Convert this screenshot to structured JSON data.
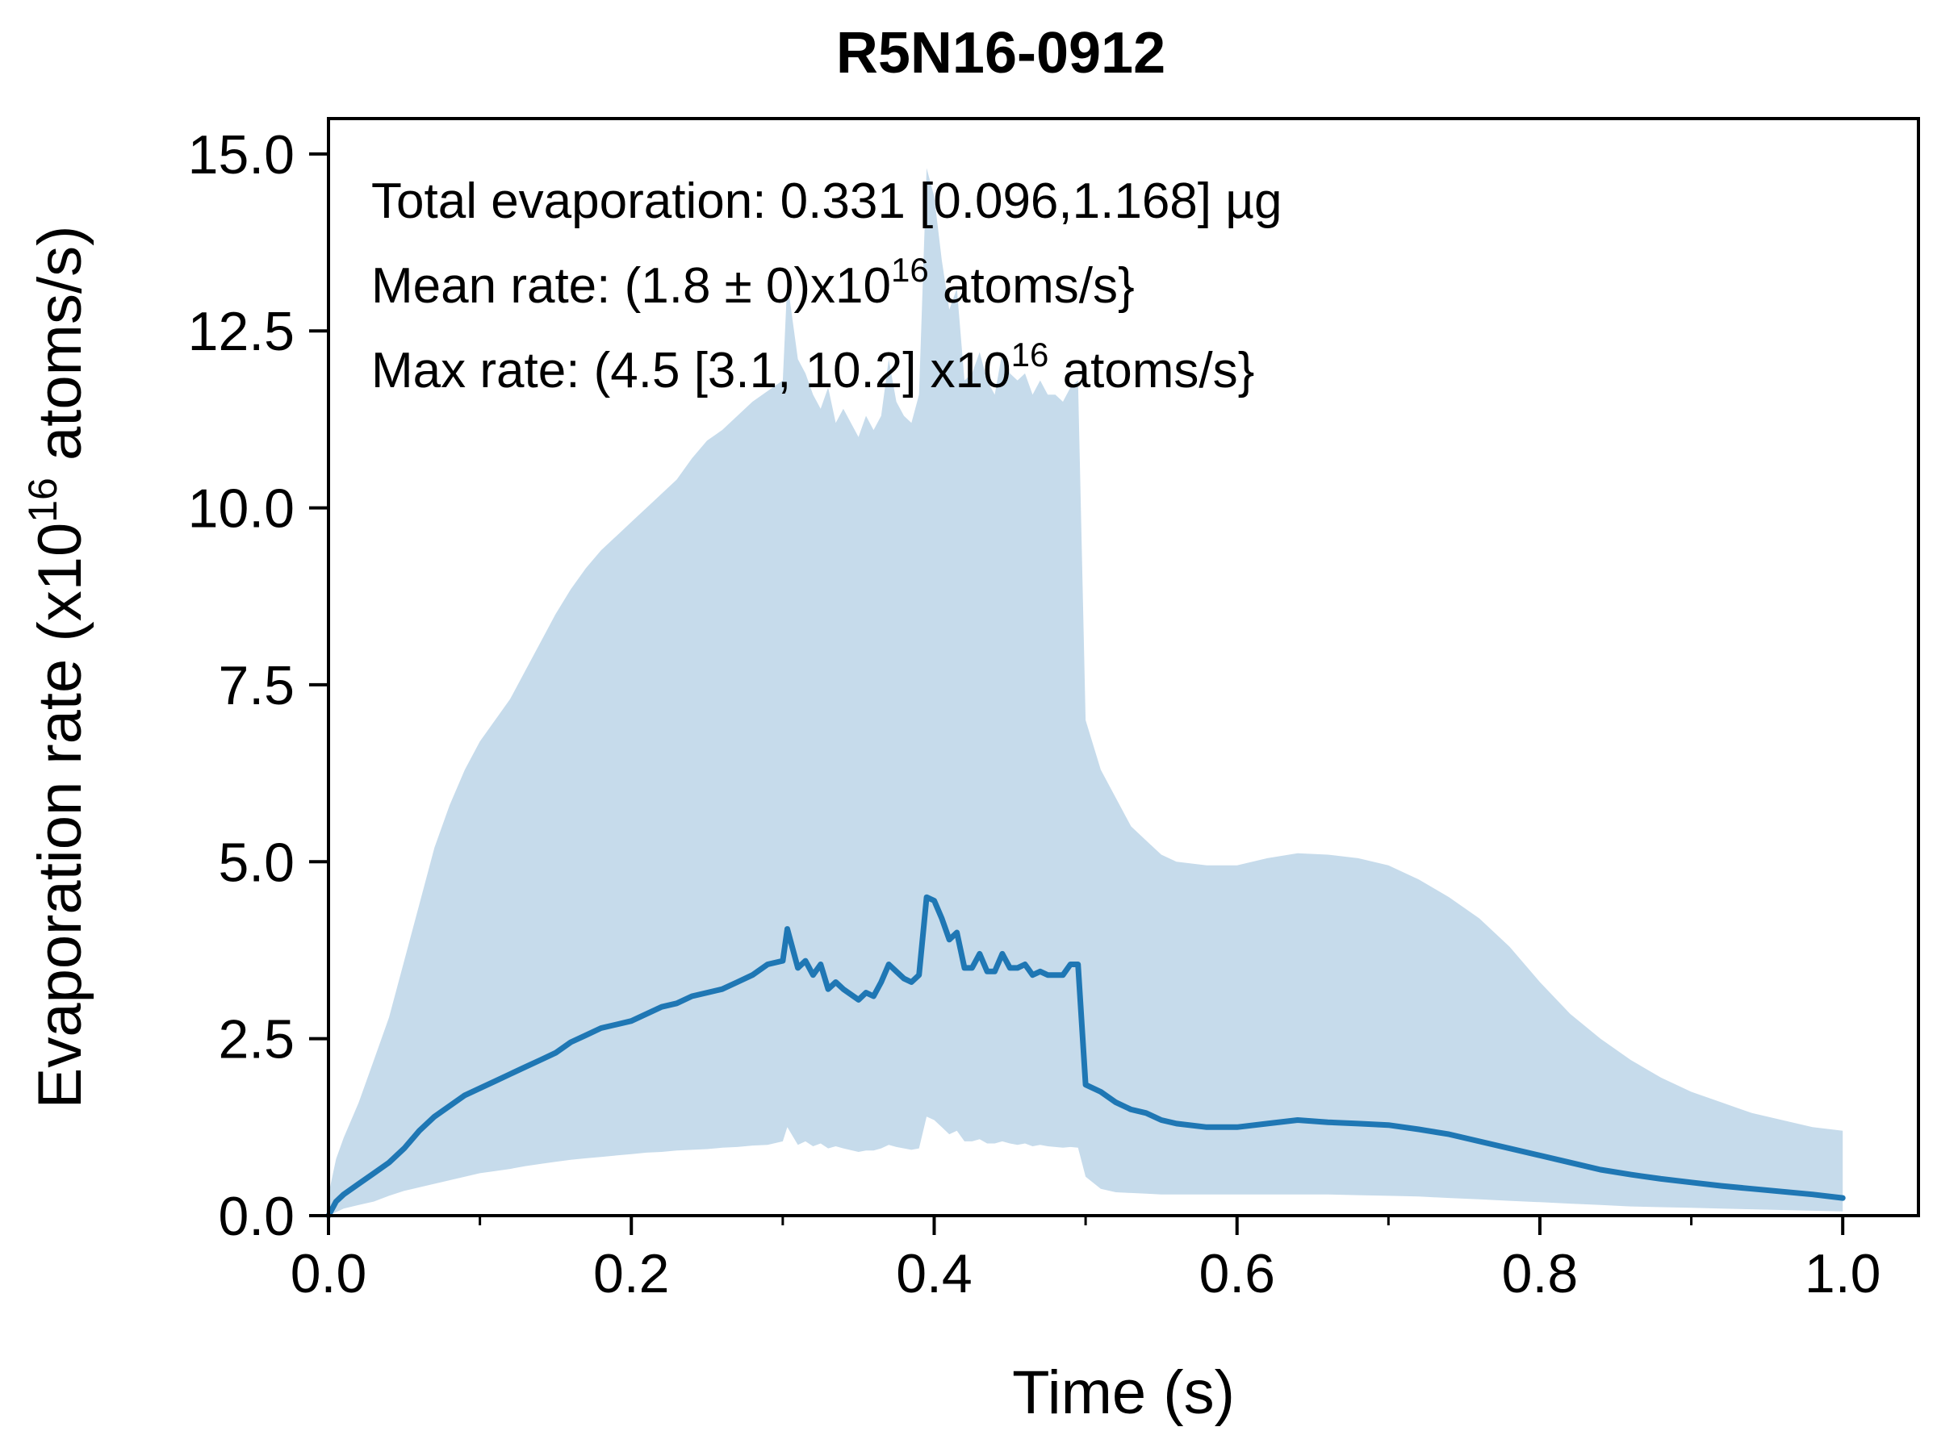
{
  "chart_data": {
    "type": "area",
    "title": "R5N16-0912",
    "xlabel": "Time (s)",
    "ylabel": "Evaporation rate (x10",
    "ylabel_sup": "16",
    "ylabel_end": " atoms/s)",
    "xlim": [
      0.0,
      1.05
    ],
    "ylim": [
      0.0,
      15.5
    ],
    "xticks": [
      0.0,
      0.2,
      0.4,
      0.6,
      0.8,
      1.0
    ],
    "xtick_labels": [
      "0.0",
      "0.2",
      "0.4",
      "0.6",
      "0.8",
      "1.0"
    ],
    "yticks": [
      0.0,
      2.5,
      5.0,
      7.5,
      10.0,
      12.5,
      15.0
    ],
    "ytick_labels": [
      "0.0",
      "2.5",
      "5.0",
      "7.5",
      "10.0",
      "12.5",
      "15.0"
    ],
    "grid": false,
    "annotations": {
      "line1": "Total evaporation: 0.331 [0.096,1.168] µg",
      "line2_pre": "Mean rate: (1.8 ± 0)x10",
      "line2_sup": "16",
      "line2_post": " atoms/s}",
      "line3_pre": "Max rate: (4.5 [3.1, 10.2] x10",
      "line3_sup": "16",
      "line3_post": " atoms/s}"
    },
    "colors": {
      "line": "#1f77b4",
      "band": "#c6dbeb"
    },
    "series": [
      {
        "x": [
          0.0,
          0.005,
          0.01,
          0.02,
          0.03,
          0.04,
          0.05,
          0.06,
          0.07,
          0.08,
          0.09,
          0.1,
          0.11,
          0.12,
          0.13,
          0.14,
          0.15,
          0.16,
          0.17,
          0.18,
          0.19,
          0.2,
          0.21,
          0.22,
          0.23,
          0.24,
          0.25,
          0.26,
          0.27,
          0.28,
          0.29,
          0.3,
          0.303,
          0.31,
          0.315,
          0.32,
          0.325,
          0.33,
          0.335,
          0.34,
          0.35,
          0.355,
          0.36,
          0.365,
          0.37,
          0.375,
          0.38,
          0.385,
          0.39,
          0.395,
          0.4,
          0.405,
          0.41,
          0.415,
          0.42,
          0.425,
          0.43,
          0.435,
          0.44,
          0.445,
          0.45,
          0.455,
          0.46,
          0.465,
          0.47,
          0.475,
          0.48,
          0.485,
          0.49,
          0.495,
          0.5,
          0.51,
          0.52,
          0.53,
          0.54,
          0.55,
          0.56,
          0.58,
          0.6,
          0.62,
          0.64,
          0.66,
          0.68,
          0.7,
          0.72,
          0.74,
          0.76,
          0.78,
          0.8,
          0.82,
          0.84,
          0.86,
          0.88,
          0.9,
          0.92,
          0.94,
          0.96,
          0.98,
          1.0
        ],
        "y": [
          0.0,
          0.2,
          0.3,
          0.45,
          0.6,
          0.75,
          0.95,
          1.2,
          1.4,
          1.55,
          1.7,
          1.8,
          1.9,
          2.0,
          2.1,
          2.2,
          2.3,
          2.45,
          2.55,
          2.65,
          2.7,
          2.75,
          2.85,
          2.95,
          3.0,
          3.1,
          3.15,
          3.2,
          3.3,
          3.4,
          3.55,
          3.6,
          4.05,
          3.5,
          3.6,
          3.4,
          3.55,
          3.2,
          3.3,
          3.2,
          3.05,
          3.15,
          3.1,
          3.3,
          3.55,
          3.45,
          3.35,
          3.3,
          3.4,
          4.5,
          4.45,
          4.2,
          3.9,
          4.0,
          3.5,
          3.5,
          3.7,
          3.45,
          3.45,
          3.7,
          3.5,
          3.5,
          3.55,
          3.4,
          3.45,
          3.4,
          3.4,
          3.4,
          3.55,
          3.55,
          1.85,
          1.75,
          1.6,
          1.5,
          1.45,
          1.35,
          1.3,
          1.25,
          1.25,
          1.3,
          1.35,
          1.32,
          1.3,
          1.28,
          1.22,
          1.15,
          1.05,
          0.95,
          0.85,
          0.75,
          0.65,
          0.58,
          0.52,
          0.47,
          0.42,
          0.38,
          0.34,
          0.3,
          0.25
        ]
      }
    ],
    "band": {
      "x": [
        0.0,
        0.005,
        0.01,
        0.02,
        0.03,
        0.04,
        0.05,
        0.06,
        0.07,
        0.08,
        0.09,
        0.1,
        0.11,
        0.12,
        0.13,
        0.14,
        0.15,
        0.16,
        0.17,
        0.18,
        0.19,
        0.2,
        0.21,
        0.22,
        0.23,
        0.24,
        0.25,
        0.26,
        0.27,
        0.28,
        0.29,
        0.3,
        0.303,
        0.31,
        0.315,
        0.32,
        0.325,
        0.33,
        0.335,
        0.34,
        0.35,
        0.355,
        0.36,
        0.365,
        0.37,
        0.375,
        0.38,
        0.385,
        0.39,
        0.395,
        0.4,
        0.405,
        0.41,
        0.415,
        0.42,
        0.425,
        0.43,
        0.435,
        0.44,
        0.445,
        0.45,
        0.455,
        0.46,
        0.465,
        0.47,
        0.475,
        0.48,
        0.485,
        0.49,
        0.495,
        0.5,
        0.51,
        0.52,
        0.53,
        0.54,
        0.55,
        0.56,
        0.58,
        0.6,
        0.62,
        0.64,
        0.66,
        0.68,
        0.7,
        0.72,
        0.74,
        0.76,
        0.78,
        0.8,
        0.82,
        0.84,
        0.86,
        0.88,
        0.9,
        0.92,
        0.94,
        0.96,
        0.98,
        1.0
      ],
      "lower": [
        0.0,
        0.05,
        0.1,
        0.15,
        0.2,
        0.28,
        0.35,
        0.4,
        0.45,
        0.5,
        0.55,
        0.6,
        0.63,
        0.66,
        0.7,
        0.73,
        0.76,
        0.79,
        0.81,
        0.83,
        0.85,
        0.87,
        0.89,
        0.9,
        0.92,
        0.93,
        0.94,
        0.96,
        0.97,
        0.99,
        1.0,
        1.05,
        1.25,
        1.0,
        1.05,
        0.98,
        1.02,
        0.95,
        0.98,
        0.95,
        0.9,
        0.92,
        0.92,
        0.95,
        1.0,
        0.97,
        0.95,
        0.93,
        0.95,
        1.4,
        1.35,
        1.25,
        1.15,
        1.2,
        1.05,
        1.05,
        1.08,
        1.02,
        1.02,
        1.05,
        1.02,
        1.0,
        1.02,
        0.98,
        1.0,
        0.98,
        0.97,
        0.96,
        0.97,
        0.96,
        0.55,
        0.38,
        0.33,
        0.32,
        0.31,
        0.3,
        0.3,
        0.3,
        0.3,
        0.3,
        0.3,
        0.3,
        0.29,
        0.28,
        0.27,
        0.25,
        0.23,
        0.21,
        0.19,
        0.17,
        0.15,
        0.13,
        0.12,
        0.11,
        0.1,
        0.09,
        0.08,
        0.07,
        0.06
      ],
      "upper": [
        0.3,
        0.8,
        1.1,
        1.6,
        2.2,
        2.8,
        3.6,
        4.4,
        5.2,
        5.8,
        6.3,
        6.7,
        7.0,
        7.3,
        7.7,
        8.1,
        8.5,
        8.85,
        9.15,
        9.4,
        9.6,
        9.8,
        10.0,
        10.2,
        10.4,
        10.7,
        10.95,
        11.1,
        11.3,
        11.5,
        11.65,
        11.8,
        13.2,
        12.1,
        11.9,
        11.6,
        11.4,
        11.7,
        11.2,
        11.4,
        11.0,
        11.3,
        11.1,
        11.3,
        12.1,
        11.5,
        11.3,
        11.2,
        11.6,
        14.8,
        14.4,
        13.5,
        12.8,
        13.1,
        11.8,
        11.9,
        12.2,
        11.8,
        11.6,
        12.2,
        11.9,
        11.8,
        11.9,
        11.6,
        11.8,
        11.6,
        11.6,
        11.5,
        11.7,
        11.8,
        7.0,
        6.3,
        5.9,
        5.5,
        5.3,
        5.1,
        5.0,
        4.95,
        4.95,
        5.05,
        5.12,
        5.1,
        5.05,
        4.95,
        4.75,
        4.5,
        4.2,
        3.8,
        3.3,
        2.85,
        2.5,
        2.2,
        1.95,
        1.75,
        1.6,
        1.45,
        1.35,
        1.25,
        1.2
      ]
    }
  }
}
